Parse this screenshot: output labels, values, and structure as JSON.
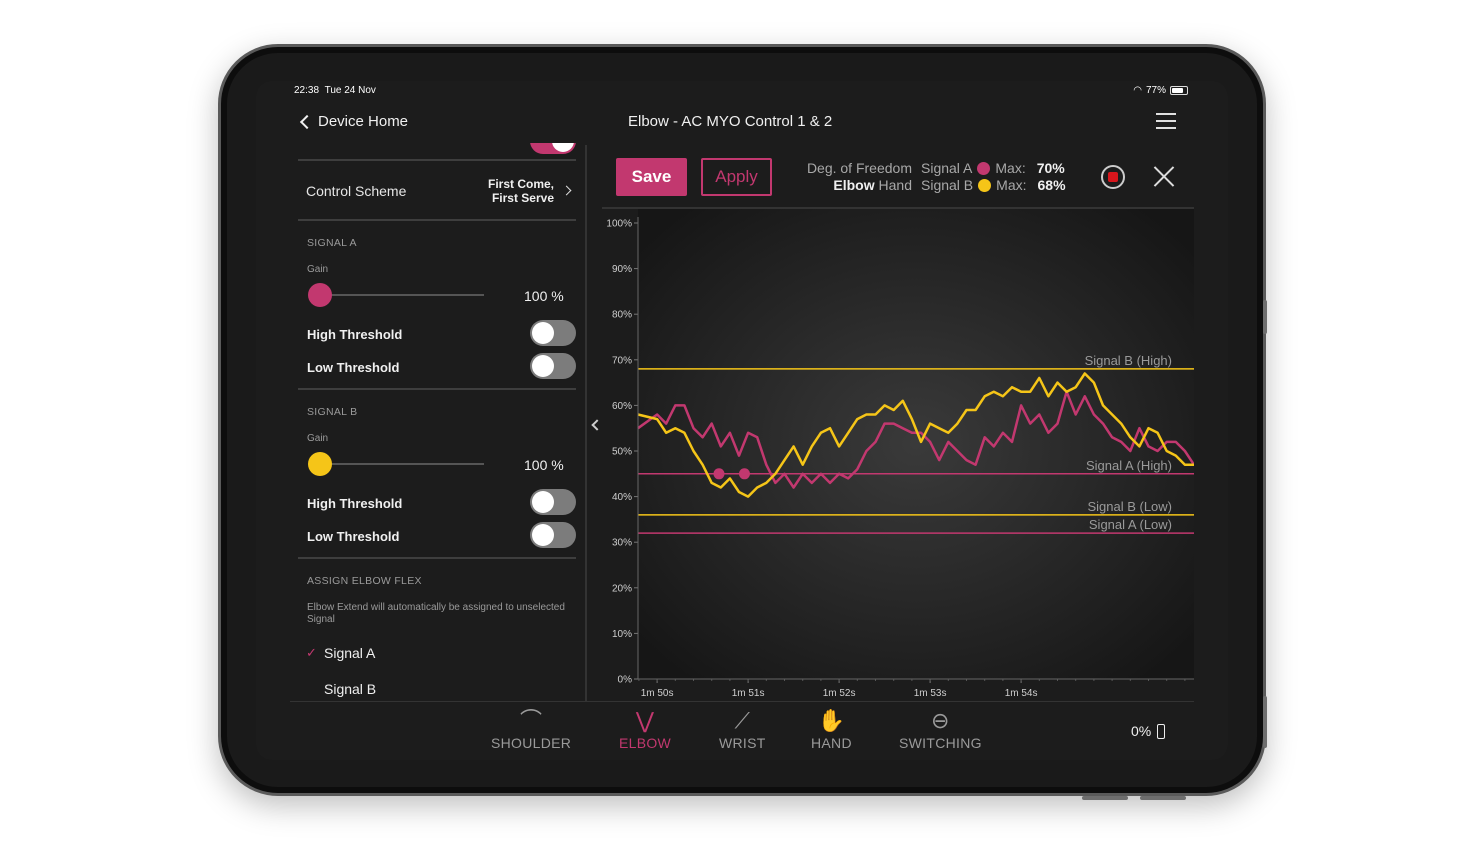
{
  "status": {
    "time": "22:38",
    "date": "Tue 24 Nov",
    "battery": "77%"
  },
  "nav": {
    "back_label": "Device Home",
    "title": "Elbow - AC MYO Control 1 & 2"
  },
  "control_scheme": {
    "label": "Control Scheme",
    "value_line1": "First Come,",
    "value_line2": "First Serve"
  },
  "signal_a": {
    "header": "SIGNAL A",
    "gain_label": "Gain",
    "gain_value": "100 %",
    "high_label": "High Threshold",
    "low_label": "Low Threshold",
    "high_on": false,
    "low_on": false,
    "color": "#c2386f"
  },
  "signal_b": {
    "header": "SIGNAL B",
    "gain_label": "Gain",
    "gain_value": "100 %",
    "high_label": "High Threshold",
    "low_label": "Low Threshold",
    "high_on": false,
    "low_on": false,
    "color": "#f5c518"
  },
  "assign": {
    "header": "ASSIGN ELBOW FLEX",
    "note": "Elbow Extend will automatically be assigned to unselected Signal",
    "options": [
      "Signal A",
      "Signal B"
    ],
    "selected": "Signal A"
  },
  "toolbar": {
    "save": "Save",
    "apply": "Apply",
    "dof_label": "Deg. of Freedom",
    "dof_selected": "Elbow",
    "dof_other": "Hand"
  },
  "signals_legend": [
    {
      "name": "Signal A",
      "max_label": "Max:",
      "max_value": "70%",
      "color": "#c2386f"
    },
    {
      "name": "Signal B",
      "max_label": "Max:",
      "max_value": "68%",
      "color": "#f5c518"
    }
  ],
  "chart_data": {
    "type": "line",
    "ylim": [
      0,
      100
    ],
    "y_ticks": [
      "0%",
      "10%",
      "20%",
      "30%",
      "40%",
      "50%",
      "60%",
      "70%",
      "80%",
      "90%",
      "100%"
    ],
    "x_ticks": [
      "1m 50s",
      "1m 51s",
      "1m 52s",
      "1m 53s",
      "1m 54s"
    ],
    "thresholds": [
      {
        "label": "Signal B (High)",
        "value": 68,
        "color": "#f5c518"
      },
      {
        "label": "Signal A (High)",
        "value": 45,
        "color": "#c2386f"
      },
      {
        "label": "Signal B (Low)",
        "value": 36,
        "color": "#f5c518"
      },
      {
        "label": "Signal A (Low)",
        "value": 32,
        "color": "#c2386f"
      }
    ],
    "series": [
      {
        "name": "Signal A",
        "color": "#c2386f",
        "x": [
          1.495,
          1.6,
          1.65,
          1.7,
          1.75,
          1.8,
          1.85,
          1.9,
          1.95,
          2.0,
          2.05,
          2.1,
          2.15,
          2.2,
          2.25,
          2.3,
          2.35,
          2.4,
          2.45,
          2.5,
          2.55,
          2.6,
          2.65,
          2.7,
          2.75,
          2.8,
          2.85,
          2.9,
          2.95,
          3.0,
          3.05,
          3.1,
          3.15,
          3.2,
          3.25,
          3.3,
          3.35,
          3.4,
          3.45,
          3.5,
          3.55,
          3.6,
          3.65,
          3.7,
          3.75,
          3.8,
          3.85,
          3.9,
          3.95,
          4.0,
          4.05,
          4.1,
          4.15,
          4.2,
          4.25,
          4.3,
          4.35,
          4.4,
          4.45,
          4.5,
          4.55
        ],
        "y": [
          55,
          58,
          56,
          60,
          60,
          55,
          53,
          56,
          51,
          54,
          49,
          54,
          53,
          47,
          43,
          45,
          42,
          45,
          43,
          45,
          43,
          45,
          44,
          46,
          50,
          52,
          56,
          56,
          55,
          54,
          54,
          52,
          48,
          52,
          50,
          48,
          47,
          53,
          51,
          54,
          52,
          60,
          56,
          58,
          54,
          56,
          63,
          58,
          62,
          58,
          56,
          53,
          52,
          50,
          55,
          51,
          50,
          52,
          52,
          50,
          47
        ],
        "markers": [
          [
            1.94,
            45
          ],
          [
            2.08,
            45
          ]
        ]
      },
      {
        "name": "Signal B",
        "color": "#f5c518",
        "x": [
          1.495,
          1.6,
          1.65,
          1.7,
          1.75,
          1.8,
          1.85,
          1.9,
          1.95,
          2.0,
          2.05,
          2.1,
          2.15,
          2.2,
          2.25,
          2.3,
          2.35,
          2.4,
          2.45,
          2.5,
          2.55,
          2.6,
          2.65,
          2.7,
          2.75,
          2.8,
          2.85,
          2.9,
          2.95,
          3.0,
          3.05,
          3.1,
          3.15,
          3.2,
          3.25,
          3.3,
          3.35,
          3.4,
          3.45,
          3.5,
          3.55,
          3.6,
          3.65,
          3.7,
          3.75,
          3.8,
          3.85,
          3.9,
          3.95,
          4.0,
          4.05,
          4.1,
          4.15,
          4.2,
          4.25,
          4.3,
          4.35,
          4.4,
          4.45,
          4.5,
          4.55
        ],
        "y": [
          58,
          57,
          54,
          55,
          54,
          50,
          47,
          43,
          42,
          44,
          41,
          40,
          42,
          43,
          45,
          48,
          51,
          47,
          51,
          54,
          55,
          51,
          54,
          57,
          58,
          58,
          60,
          59,
          61,
          57,
          52,
          56,
          55,
          54,
          56,
          59,
          59,
          62,
          63,
          62,
          64,
          63,
          63,
          66,
          62,
          65,
          63,
          64,
          67,
          65,
          60,
          58,
          56,
          53,
          51,
          55,
          54,
          50,
          49,
          47,
          47
        ]
      }
    ]
  },
  "tabs": [
    {
      "label": "SHOULDER",
      "icon": "shoulder-icon",
      "glyph": "⌒"
    },
    {
      "label": "ELBOW",
      "icon": "elbow-icon",
      "glyph": "⋁"
    },
    {
      "label": "WRIST",
      "icon": "wrist-icon",
      "glyph": "⟋"
    },
    {
      "label": "HAND",
      "icon": "hand-icon",
      "glyph": "✋"
    },
    {
      "label": "SWITCHING",
      "icon": "switch-icon",
      "glyph": "⊖"
    }
  ],
  "active_tab": "ELBOW",
  "device_battery": "0%"
}
